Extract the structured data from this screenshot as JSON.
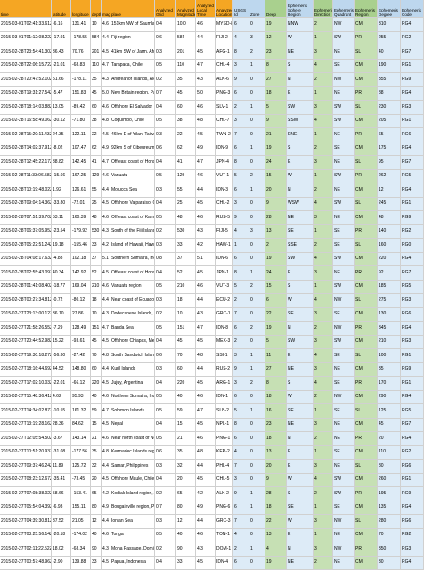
{
  "sheet": {
    "headers": [
      "time",
      "latitude",
      "longitude",
      "depth",
      "mag",
      "place",
      "Analyzed Grid",
      "Analyzed Magnitude",
      "Analyzed Local Time",
      "Analyzed Location",
      "USGS Id",
      "Zone",
      "Deep",
      "Ephemeris Sphere Region",
      "Ephemeris Direction",
      "Ephemeris Quadrant",
      "Ephemeris Region",
      "Ephemeris Degree",
      "Ephemeris Code"
    ],
    "rows": [
      [
        "2015-03-01T02:41:33.61Z",
        "-6.16",
        "131.41",
        "10",
        "4.6",
        "151km NW of Saumlaki, Indonesia",
        "0.4",
        "10.0",
        "4.6",
        "MYSD-8",
        "6",
        "0",
        "19",
        "NNW",
        "2",
        "NW",
        "CM",
        "310",
        "RG4"
      ],
      [
        "2015-03-01T01:12:08.22Z",
        "-17.91",
        "-178.55",
        "584",
        "4.4",
        "Fiji region",
        "0.6",
        "584",
        "4.4",
        "FIJI-2",
        "4",
        "3",
        "12",
        "W",
        "1",
        "SW",
        "PR",
        "255",
        "RG2"
      ],
      [
        "2015-02-28T23:54:41.30Z",
        "36.43",
        "70.76",
        "201",
        "4.5",
        "41km SW of Jarm, Afghanistan",
        "0.3",
        "201",
        "4.5",
        "AFG-1",
        "8",
        "2",
        "23",
        "NE",
        "3",
        "NE",
        "SL",
        "40",
        "RG7"
      ],
      [
        "2015-02-28T22:06:15.72Z",
        "-21.01",
        "-68.83",
        "110",
        "4.7",
        "Tarapaca, Chile",
        "0.5",
        "110",
        "4.7",
        "CHL-4",
        "3",
        "1",
        "8",
        "S",
        "4",
        "SE",
        "CM",
        "190",
        "RG1"
      ],
      [
        "2015-02-28T20:47:52.10Z",
        "51.66",
        "-178.11",
        "35",
        "4.3",
        "Andreanof Islands, Aleutian Islands",
        "0.2",
        "35",
        "4.3",
        "ALK-6",
        "9",
        "0",
        "27",
        "N",
        "2",
        "NW",
        "CM",
        "355",
        "RG9"
      ],
      [
        "2015-02-28T19:31:27.54Z",
        "-5.47",
        "151.83",
        "45",
        "5.0",
        "New Britain region, Papua New Guinea",
        "0.7",
        "45",
        "5.0",
        "PNG-3",
        "6",
        "0",
        "18",
        "E",
        "1",
        "NE",
        "PR",
        "88",
        "RG4"
      ],
      [
        "2015-02-28T18:14:03.88Z",
        "13.05",
        "-89.42",
        "60",
        "4.6",
        "Offshore El Salvador",
        "0.4",
        "60",
        "4.6",
        "SLV-1",
        "2",
        "1",
        "5",
        "SW",
        "3",
        "SW",
        "SL",
        "230",
        "RG3"
      ],
      [
        "2015-02-28T16:58:49.06Z",
        "-30.12",
        "-71.80",
        "38",
        "4.8",
        "Coquimbo, Chile",
        "0.5",
        "38",
        "4.8",
        "CHL-7",
        "3",
        "0",
        "9",
        "SSW",
        "4",
        "SW",
        "CM",
        "205",
        "RG1"
      ],
      [
        "2015-02-28T15:20:11.43Z",
        "24.35",
        "122.11",
        "22",
        "4.5",
        "46km E of Yilan, Taiwan",
        "0.3",
        "22",
        "4.5",
        "TWN-2",
        "7",
        "0",
        "21",
        "ENE",
        "1",
        "NE",
        "PR",
        "65",
        "RG6"
      ],
      [
        "2015-02-28T14:02:37.91Z",
        "-8.02",
        "107.47",
        "62",
        "4.9",
        "92km S of Cibeureum, Indonesia",
        "0.6",
        "62",
        "4.9",
        "IDN-9",
        "6",
        "1",
        "19",
        "S",
        "2",
        "SE",
        "CM",
        "175",
        "RG4"
      ],
      [
        "2015-02-28T12:45:22.17Z",
        "38.82",
        "142.45",
        "41",
        "4.7",
        "Off east coast of Honshu, Japan",
        "0.4",
        "41",
        "4.7",
        "JPN-4",
        "8",
        "0",
        "24",
        "E",
        "3",
        "NE",
        "SL",
        "95",
        "RG7"
      ],
      [
        "2015-02-28T11:33:06.58Z",
        "-15.66",
        "167.25",
        "129",
        "4.6",
        "Vanuatu",
        "0.5",
        "129",
        "4.6",
        "VUT-1",
        "5",
        "2",
        "15",
        "W",
        "1",
        "SW",
        "PR",
        "262",
        "RG5"
      ],
      [
        "2015-02-28T10:19:48.02Z",
        "1.92",
        "126.61",
        "55",
        "4.4",
        "Molucca Sea",
        "0.3",
        "55",
        "4.4",
        "IDN-3",
        "6",
        "1",
        "20",
        "N",
        "2",
        "NE",
        "CM",
        "12",
        "RG4"
      ],
      [
        "2015-02-28T09:04:14.36Z",
        "-33.80",
        "-72.01",
        "25",
        "4.5",
        "Offshore Valparaiso, Chile",
        "0.4",
        "25",
        "4.5",
        "CHL-2",
        "3",
        "0",
        "9",
        "WSW",
        "4",
        "SW",
        "SL",
        "245",
        "RG1"
      ],
      [
        "2015-02-28T07:51:39.70Z",
        "53.11",
        "160.39",
        "48",
        "4.6",
        "Off east coast of Kamchatka",
        "0.5",
        "48",
        "4.6",
        "RUS-5",
        "9",
        "0",
        "28",
        "NE",
        "3",
        "NE",
        "CM",
        "48",
        "RG9"
      ],
      [
        "2015-02-28T06:37:05.95Z",
        "-23.54",
        "-179.92",
        "530",
        "4.3",
        "South of the Fiji Islands",
        "0.2",
        "530",
        "4.3",
        "FIJI-5",
        "4",
        "3",
        "13",
        "SE",
        "1",
        "SE",
        "PR",
        "140",
        "RG2"
      ],
      [
        "2015-02-28T05:22:51.24Z",
        "19.18",
        "-155.46",
        "33",
        "4.2",
        "Island of Hawaii, Hawaii",
        "0.3",
        "33",
        "4.2",
        "HAW-1",
        "1",
        "0",
        "2",
        "SSE",
        "2",
        "SE",
        "SL",
        "160",
        "RG0"
      ],
      [
        "2015-02-28T04:08:17.63Z",
        "-4.88",
        "102.18",
        "37",
        "5.1",
        "Southern Sumatra, Indonesia",
        "0.8",
        "37",
        "5.1",
        "IDN-6",
        "6",
        "0",
        "19",
        "SW",
        "4",
        "SW",
        "CM",
        "220",
        "RG4"
      ],
      [
        "2015-02-28T02:55:43.09Z",
        "40.34",
        "142.92",
        "52",
        "4.5",
        "Off east coast of Honshu, Japan",
        "0.4",
        "52",
        "4.5",
        "JPN-1",
        "8",
        "1",
        "24",
        "E",
        "3",
        "NE",
        "PR",
        "92",
        "RG7"
      ],
      [
        "2015-02-28T01:41:08.40Z",
        "-18.77",
        "169.04",
        "210",
        "4.6",
        "Vanuatu region",
        "0.5",
        "210",
        "4.6",
        "VUT-3",
        "5",
        "2",
        "15",
        "S",
        "1",
        "SW",
        "CM",
        "185",
        "RG5"
      ],
      [
        "2015-02-28T00:27:34.81Z",
        "-0.72",
        "-80.12",
        "18",
        "4.4",
        "Near coast of Ecuador",
        "0.3",
        "18",
        "4.4",
        "ECU-2",
        "2",
        "0",
        "6",
        "W",
        "4",
        "NW",
        "SL",
        "275",
        "RG3"
      ],
      [
        "2015-02-27T23:13:00.12Z",
        "36.10",
        "27.86",
        "10",
        "4.3",
        "Dodecanese Islands, Greece",
        "0.2",
        "10",
        "4.3",
        "GRC-1",
        "7",
        "0",
        "22",
        "SE",
        "3",
        "SE",
        "CM",
        "130",
        "RG6"
      ],
      [
        "2015-02-27T21:58:26.55Z",
        "-7.29",
        "128.49",
        "151",
        "4.7",
        "Banda Sea",
        "0.5",
        "151",
        "4.7",
        "IDN-8",
        "6",
        "2",
        "19",
        "N",
        "2",
        "NW",
        "PR",
        "345",
        "RG4"
      ],
      [
        "2015-02-27T20:44:52.98Z",
        "15.22",
        "-93.61",
        "45",
        "4.5",
        "Offshore Chiapas, Mexico",
        "0.4",
        "45",
        "4.5",
        "MEX-3",
        "2",
        "0",
        "5",
        "SW",
        "3",
        "SW",
        "CM",
        "210",
        "RG3"
      ],
      [
        "2015-02-27T19:30:18.27Z",
        "-56.30",
        "-27.42",
        "70",
        "4.8",
        "South Sandwich Islands region",
        "0.6",
        "70",
        "4.8",
        "SSI-1",
        "3",
        "1",
        "11",
        "E",
        "4",
        "SE",
        "SL",
        "100",
        "RG1"
      ],
      [
        "2015-02-27T18:16:44.69Z",
        "44.52",
        "148.80",
        "60",
        "4.4",
        "Kuril Islands",
        "0.3",
        "60",
        "4.4",
        "RUS-2",
        "9",
        "1",
        "27",
        "NE",
        "3",
        "NE",
        "CM",
        "35",
        "RG9"
      ],
      [
        "2015-02-27T17:02:10.03Z",
        "-22.01",
        "-66.12",
        "220",
        "4.5",
        "Jujuy, Argentina",
        "0.4",
        "220",
        "4.5",
        "ARG-1",
        "3",
        "2",
        "8",
        "S",
        "4",
        "SE",
        "PR",
        "170",
        "RG1"
      ],
      [
        "2015-02-27T15:48:36.41Z",
        "4.62",
        "95.93",
        "40",
        "4.6",
        "Northern Sumatra, Indonesia",
        "0.5",
        "40",
        "4.6",
        "IDN-1",
        "6",
        "0",
        "18",
        "W",
        "2",
        "NW",
        "CM",
        "290",
        "RG4"
      ],
      [
        "2015-02-27T14:34:02.87Z",
        "-10.55",
        "161.32",
        "59",
        "4.7",
        "Solomon Islands",
        "0.5",
        "59",
        "4.7",
        "SLB-2",
        "5",
        "1",
        "16",
        "SE",
        "1",
        "SE",
        "SL",
        "125",
        "RG5"
      ],
      [
        "2015-02-27T13:19:28.16Z",
        "28.36",
        "84.62",
        "15",
        "4.5",
        "Nepal",
        "0.4",
        "15",
        "4.5",
        "NPL-1",
        "8",
        "0",
        "23",
        "NE",
        "3",
        "NE",
        "CM",
        "45",
        "RG7"
      ],
      [
        "2015-02-27T12:05:54.50Z",
        "-3.67",
        "143.14",
        "21",
        "4.6",
        "Near north coast of New Guinea",
        "0.5",
        "21",
        "4.6",
        "PNG-1",
        "6",
        "0",
        "18",
        "N",
        "2",
        "NE",
        "PR",
        "20",
        "RG4"
      ],
      [
        "2015-02-27T10:51:20.93Z",
        "-31.08",
        "-177.56",
        "35",
        "4.8",
        "Kermadec Islands region",
        "0.6",
        "35",
        "4.8",
        "KER-2",
        "4",
        "0",
        "13",
        "E",
        "1",
        "SE",
        "CM",
        "110",
        "RG2"
      ],
      [
        "2015-02-27T09:37:46.24Z",
        "11.89",
        "125.72",
        "32",
        "4.4",
        "Samar, Philippines",
        "0.3",
        "32",
        "4.4",
        "PHL-4",
        "7",
        "0",
        "20",
        "E",
        "3",
        "NE",
        "SL",
        "80",
        "RG6"
      ],
      [
        "2015-02-27T08:23:12.67Z",
        "-35.41",
        "-73.45",
        "20",
        "4.5",
        "Offshore Maule, Chile",
        "0.4",
        "20",
        "4.5",
        "CHL-5",
        "3",
        "0",
        "9",
        "W",
        "4",
        "SW",
        "CM",
        "260",
        "RG1"
      ],
      [
        "2015-02-27T07:08:38.02Z",
        "58.66",
        "-153.41",
        "65",
        "4.2",
        "Kodiak Island region, Alaska",
        "0.2",
        "65",
        "4.2",
        "ALK-2",
        "9",
        "1",
        "28",
        "S",
        "2",
        "SW",
        "PR",
        "195",
        "RG9"
      ],
      [
        "2015-02-27T05:54:04.39Z",
        "-6.93",
        "155.11",
        "80",
        "4.9",
        "Bougainville region, PNG",
        "0.7",
        "80",
        "4.9",
        "PNG-6",
        "6",
        "1",
        "18",
        "SE",
        "1",
        "SE",
        "CM",
        "135",
        "RG4"
      ],
      [
        "2015-02-27T04:39:30.81Z",
        "37.52",
        "21.05",
        "12",
        "4.4",
        "Ionian Sea",
        "0.3",
        "12",
        "4.4",
        "GRC-3",
        "7",
        "0",
        "22",
        "W",
        "3",
        "NW",
        "SL",
        "280",
        "RG6"
      ],
      [
        "2015-02-27T03:25:56.14Z",
        "-20.18",
        "-174.02",
        "40",
        "4.6",
        "Tonga",
        "0.5",
        "40",
        "4.6",
        "TON-1",
        "4",
        "0",
        "13",
        "E",
        "1",
        "NE",
        "CM",
        "70",
        "RG2"
      ],
      [
        "2015-02-27T02:11:22.52Z",
        "18.02",
        "-68.34",
        "90",
        "4.3",
        "Mona Passage, Dominican Republic",
        "0.2",
        "90",
        "4.3",
        "DOM-1",
        "2",
        "1",
        "4",
        "N",
        "3",
        "NW",
        "PR",
        "350",
        "RG3"
      ],
      [
        "2015-02-27T00:57:48.96Z",
        "-2.90",
        "139.88",
        "33",
        "4.5",
        "Papua, Indonesia",
        "0.4",
        "33",
        "4.5",
        "IDN-4",
        "6",
        "0",
        "19",
        "NE",
        "2",
        "NE",
        "CM",
        "30",
        "RG4"
      ]
    ]
  }
}
